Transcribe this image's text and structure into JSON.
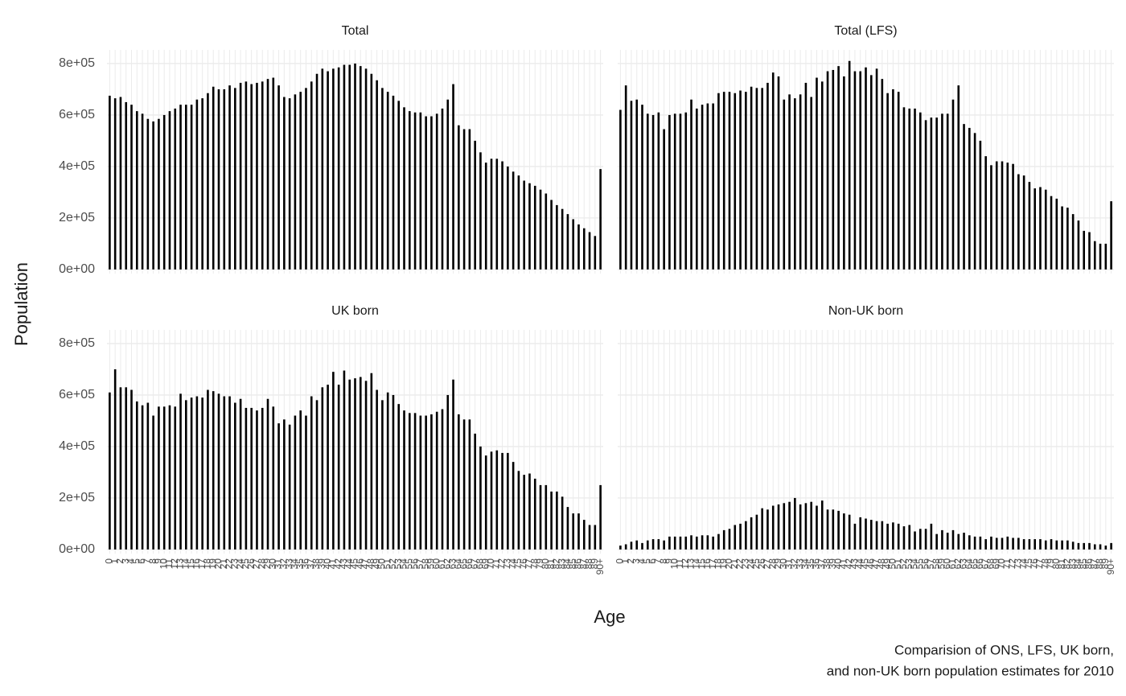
{
  "chart_data": {
    "type": "bar",
    "x_label": "Age",
    "y_label": "Population",
    "caption": [
      "Comparision of ONS, LFS, UK born,",
      "and non-UK born population estimates for 2010"
    ],
    "color": "#000000",
    "grid": true,
    "ylim": [
      -16000,
      853000
    ],
    "yticks": [
      {
        "value": 0,
        "label": "0e+00"
      },
      {
        "value": 200000,
        "label": "2e+05"
      },
      {
        "value": 400000,
        "label": "4e+05"
      },
      {
        "value": 600000,
        "label": "6e+05"
      },
      {
        "value": 800000,
        "label": "8e+05"
      }
    ],
    "categories": [
      "0",
      "1",
      "2",
      "3",
      "4",
      "5",
      "6",
      "7",
      "8",
      "9",
      "10",
      "11",
      "12",
      "13",
      "14",
      "15",
      "16",
      "17",
      "18",
      "19",
      "20",
      "21",
      "22",
      "23",
      "24",
      "25",
      "26",
      "27",
      "28",
      "29",
      "30",
      "31",
      "32",
      "33",
      "34",
      "35",
      "36",
      "37",
      "38",
      "39",
      "40",
      "41",
      "42",
      "43",
      "44",
      "45",
      "46",
      "47",
      "48",
      "49",
      "50",
      "51",
      "52",
      "53",
      "54",
      "55",
      "56",
      "57",
      "58",
      "59",
      "60",
      "61",
      "62",
      "63",
      "64",
      "65",
      "66",
      "67",
      "68",
      "69",
      "70",
      "71",
      "72",
      "73",
      "74",
      "75",
      "76",
      "77",
      "78",
      "79",
      "80",
      "81",
      "82",
      "83",
      "84",
      "85",
      "86",
      "87",
      "88",
      "89",
      "90+"
    ],
    "facets": [
      {
        "title": "Total",
        "values": [
          675000,
          665000,
          670000,
          650000,
          640000,
          615000,
          605000,
          585000,
          575000,
          585000,
          600000,
          615000,
          625000,
          640000,
          640000,
          640000,
          660000,
          665000,
          685000,
          710000,
          700000,
          700000,
          715000,
          705000,
          725000,
          730000,
          720000,
          725000,
          730000,
          740000,
          745000,
          715000,
          670000,
          665000,
          680000,
          690000,
          705000,
          730000,
          760000,
          780000,
          770000,
          780000,
          785000,
          795000,
          795000,
          800000,
          790000,
          780000,
          760000,
          735000,
          705000,
          690000,
          675000,
          655000,
          630000,
          615000,
          610000,
          610000,
          595000,
          595000,
          605000,
          625000,
          660000,
          720000,
          560000,
          545000,
          545000,
          500000,
          455000,
          415000,
          430000,
          430000,
          420000,
          400000,
          380000,
          365000,
          345000,
          335000,
          325000,
          310000,
          295000,
          270000,
          250000,
          235000,
          215000,
          195000,
          175000,
          160000,
          145000,
          130000,
          390000
        ]
      },
      {
        "title": "Total (LFS)",
        "values": [
          620000,
          715000,
          655000,
          660000,
          640000,
          605000,
          600000,
          610000,
          545000,
          600000,
          605000,
          605000,
          610000,
          660000,
          625000,
          640000,
          645000,
          645000,
          685000,
          690000,
          690000,
          685000,
          695000,
          690000,
          710000,
          705000,
          705000,
          725000,
          765000,
          750000,
          660000,
          680000,
          665000,
          680000,
          725000,
          670000,
          745000,
          730000,
          770000,
          775000,
          790000,
          750000,
          810000,
          770000,
          770000,
          785000,
          755000,
          780000,
          740000,
          685000,
          700000,
          690000,
          630000,
          625000,
          625000,
          610000,
          580000,
          590000,
          590000,
          605000,
          605000,
          660000,
          715000,
          565000,
          550000,
          530000,
          500000,
          440000,
          405000,
          420000,
          420000,
          415000,
          410000,
          370000,
          365000,
          340000,
          315000,
          320000,
          310000,
          285000,
          275000,
          245000,
          240000,
          215000,
          190000,
          150000,
          145000,
          110000,
          100000,
          100000,
          265000
        ]
      },
      {
        "title": "UK born",
        "values": [
          610000,
          700000,
          630000,
          630000,
          620000,
          575000,
          560000,
          570000,
          520000,
          555000,
          555000,
          560000,
          555000,
          605000,
          580000,
          590000,
          595000,
          590000,
          620000,
          615000,
          605000,
          595000,
          595000,
          570000,
          585000,
          550000,
          550000,
          540000,
          550000,
          585000,
          555000,
          490000,
          505000,
          485000,
          520000,
          540000,
          520000,
          595000,
          580000,
          630000,
          640000,
          690000,
          640000,
          695000,
          660000,
          665000,
          670000,
          655000,
          685000,
          620000,
          580000,
          610000,
          600000,
          565000,
          540000,
          530000,
          530000,
          520000,
          520000,
          525000,
          535000,
          545000,
          600000,
          660000,
          525000,
          505000,
          505000,
          450000,
          400000,
          365000,
          380000,
          385000,
          375000,
          375000,
          340000,
          305000,
          290000,
          295000,
          275000,
          250000,
          250000,
          225000,
          225000,
          205000,
          165000,
          140000,
          140000,
          115000,
          95000,
          95000,
          250000
        ]
      },
      {
        "title": "Non-UK born",
        "values": [
          15000,
          20000,
          30000,
          35000,
          25000,
          35000,
          40000,
          40000,
          35000,
          50000,
          50000,
          50000,
          50000,
          55000,
          50000,
          55000,
          55000,
          50000,
          60000,
          75000,
          80000,
          95000,
          100000,
          110000,
          125000,
          135000,
          160000,
          155000,
          170000,
          175000,
          180000,
          185000,
          200000,
          175000,
          180000,
          185000,
          170000,
          190000,
          155000,
          155000,
          150000,
          140000,
          135000,
          100000,
          125000,
          120000,
          115000,
          110000,
          110000,
          100000,
          105000,
          100000,
          90000,
          95000,
          70000,
          80000,
          80000,
          100000,
          60000,
          75000,
          65000,
          75000,
          60000,
          65000,
          55000,
          50000,
          50000,
          40000,
          50000,
          45000,
          45000,
          50000,
          45000,
          45000,
          40000,
          40000,
          40000,
          40000,
          35000,
          40000,
          35000,
          35000,
          35000,
          30000,
          25000,
          25000,
          25000,
          20000,
          20000,
          15000,
          25000
        ]
      }
    ]
  }
}
